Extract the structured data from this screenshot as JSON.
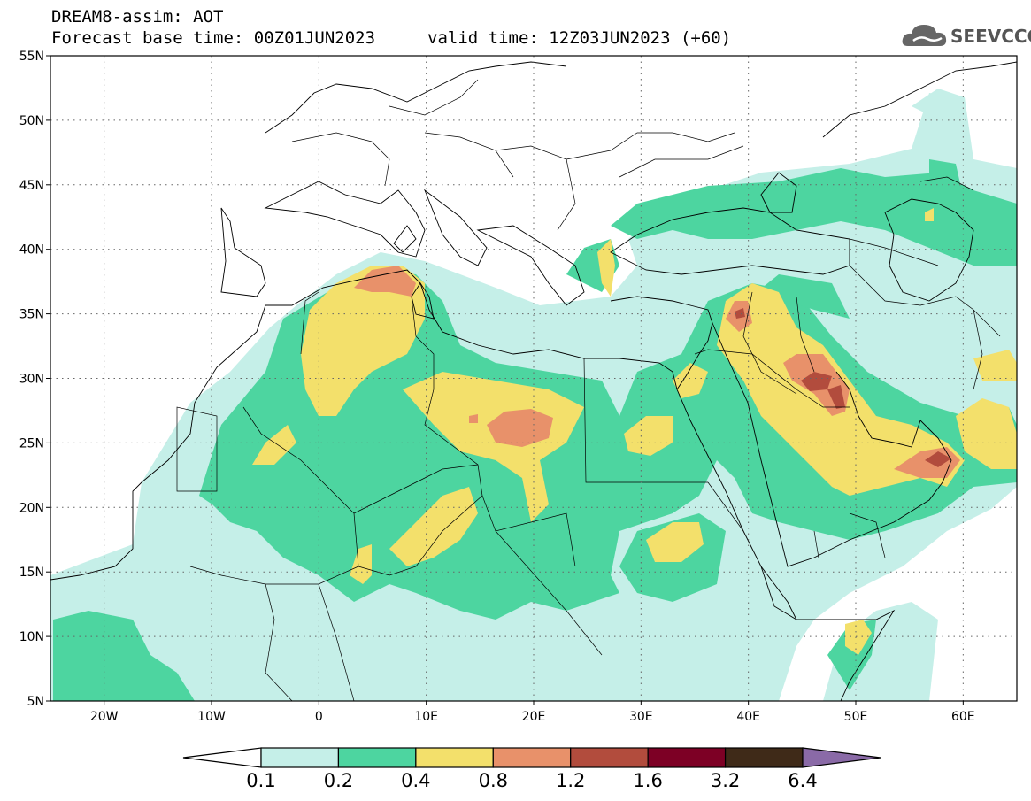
{
  "header": {
    "model_line": "DREAM8-assim: AOT",
    "base_time": "Forecast base time: 00Z01JUN2023",
    "valid_time": "valid time: 12Z03JUN2023 (+60)"
  },
  "logo": {
    "text": "SEEVCCC",
    "icon": "cloud-icon"
  },
  "axes": {
    "lat_labels": [
      "55N",
      "50N",
      "45N",
      "40N",
      "35N",
      "30N",
      "25N",
      "20N",
      "15N",
      "10N",
      "5N"
    ],
    "lon_labels": [
      "20W",
      "10W",
      "0",
      "10E",
      "20E",
      "30E",
      "40E",
      "50E",
      "60E"
    ],
    "lon_range": [
      -25,
      65
    ],
    "lat_range": [
      5,
      55
    ],
    "grid": "dotted"
  },
  "colorbar": {
    "labels": [
      "0.1",
      "0.2",
      "0.4",
      "0.8",
      "1.2",
      "1.6",
      "3.2",
      "6.4"
    ],
    "colors": [
      "#ffffff",
      "#c5efe8",
      "#4dd5a0",
      "#f3e06b",
      "#e8916a",
      "#b24c3d",
      "#7d0025",
      "#3f2a18",
      "#8a6aa7"
    ]
  },
  "field_colors": {
    "level1": "#c5efe8",
    "level2": "#4dd5a0",
    "level3": "#f3e06b",
    "level4": "#e8916a",
    "level5": "#b24c3d"
  }
}
